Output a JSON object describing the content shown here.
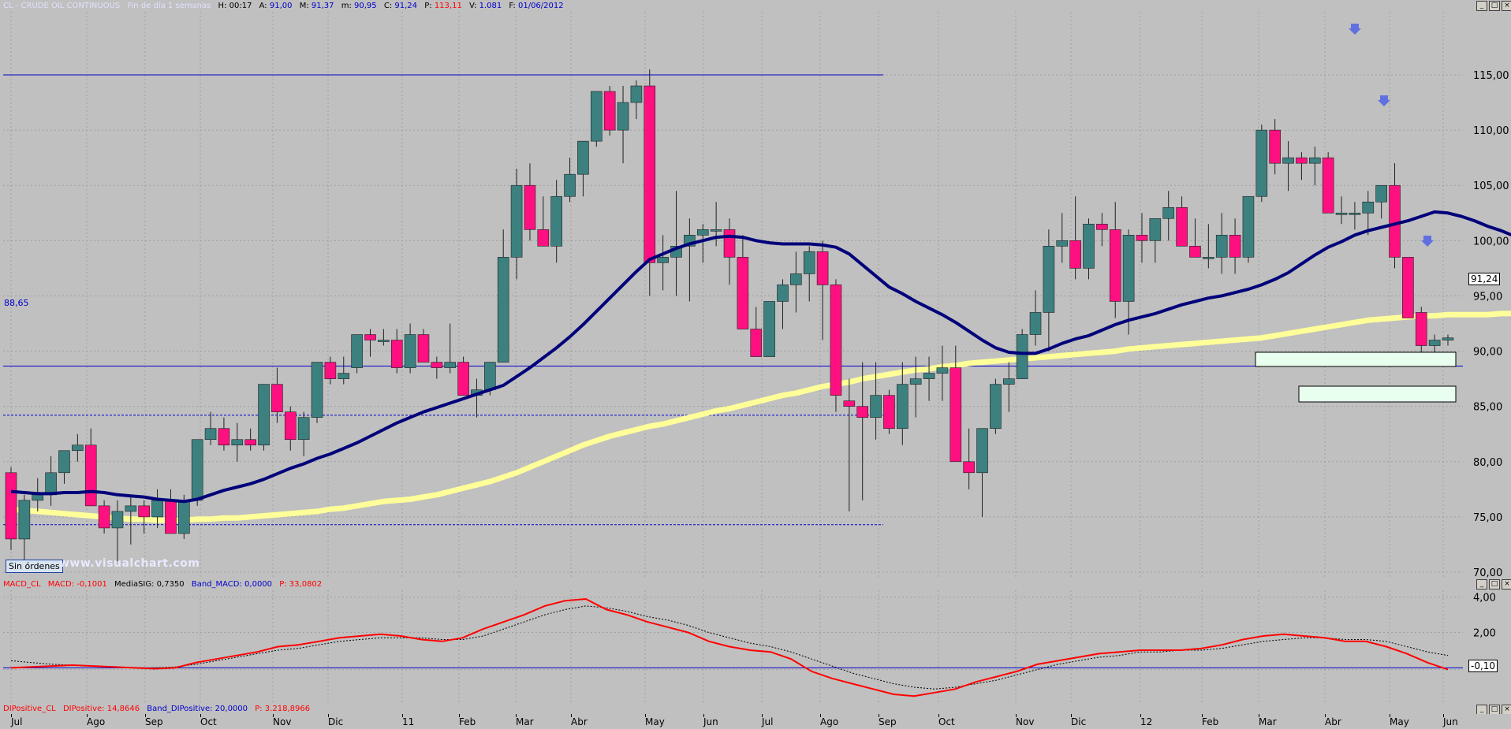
{
  "header": {
    "symbol": "CL - CRUDE OIL CONTINUOUS",
    "period": "Fin de día 1 semanas",
    "h_time": "H: 00:17",
    "a_label": "A:",
    "a_val": "91,00",
    "max_label": "M:",
    "max_val": "91,37",
    "min_label": "m:",
    "min_val": "90,95",
    "c_label": "C:",
    "c_val": "91,24",
    "p_label": "P:",
    "p_val": "113,11",
    "v_label": "V:",
    "v_val": "1.081",
    "f_label": "F:",
    "f_val": "01/06/2012"
  },
  "indicator_header": {
    "name": "MACD_CL",
    "macd": "MACD: -0,1001",
    "mediasig": "MediaSIG: 0,7350",
    "band": "Band_MACD: 0,0000",
    "p": "P: 33,0802"
  },
  "di_header": {
    "name": "DIPositive_CL",
    "di": "DIPositive: 14,8646",
    "band": "Band_DIPositive: 20,0000",
    "p": "P: 3.218,8966"
  },
  "buttons": {
    "sin_ordenes": "Sin órdenes"
  },
  "watermark": "www.visualchart.com",
  "price_badge": "91,24",
  "macd_badge": "-0,10",
  "hline_label": "88,65",
  "colors": {
    "bull": "#3d8080",
    "bear": "#ff1080",
    "ma_short": "#00007a",
    "ma_long": "#ffff99",
    "macd": "#ff0000",
    "signal": "#000000",
    "hline": "#0000cc"
  },
  "chart_data": [
    {
      "type": "candlestick",
      "title": "CL - CRUDE OIL CONTINUOUS",
      "yticks": [
        "115,00",
        "110,00",
        "105,00",
        "100,00",
        "95,00",
        "90,00",
        "85,00",
        "80,00",
        "75,00",
        "70,00"
      ],
      "ylim": [
        68,
        117
      ],
      "x_tick_labels": [
        "Jul",
        "Ago",
        "Sep",
        "Oct",
        "Nov",
        "Dic",
        "11",
        "Feb",
        "Mar",
        "Abr",
        "May",
        "Jun",
        "Jul",
        "Ago",
        "Sep",
        "Oct",
        "Nov",
        "Dic",
        "12",
        "Feb",
        "Mar",
        "Abr",
        "May",
        "Jun"
      ],
      "horizontal_lines": [
        115.0,
        88.65,
        84.2,
        74.3
      ],
      "candles_ohlc": [
        [
          79.0,
          79.5,
          72.0,
          73.0
        ],
        [
          73.0,
          77.0,
          71.0,
          76.5
        ],
        [
          76.5,
          78.5,
          75.5,
          77.0
        ],
        [
          77.0,
          80.5,
          76.0,
          79.0
        ],
        [
          79.0,
          81.0,
          78.0,
          81.0
        ],
        [
          81.0,
          82.5,
          80.0,
          81.5
        ],
        [
          81.5,
          83.0,
          76.0,
          76.0
        ],
        [
          76.0,
          76.5,
          73.5,
          74.0
        ],
        [
          74.0,
          76.5,
          71.0,
          75.5
        ],
        [
          75.5,
          77.0,
          72.5,
          76.0
        ],
        [
          76.0,
          76.5,
          73.5,
          75.0
        ],
        [
          75.0,
          77.5,
          74.0,
          76.5
        ],
        [
          76.5,
          77.5,
          73.5,
          73.5
        ],
        [
          73.5,
          77.0,
          73.0,
          76.5
        ],
        [
          76.5,
          82.0,
          76.0,
          82.0
        ],
        [
          82.0,
          84.5,
          81.5,
          83.0
        ],
        [
          83.0,
          84.0,
          81.0,
          81.5
        ],
        [
          81.5,
          83.5,
          80.0,
          82.0
        ],
        [
          82.0,
          83.0,
          81.0,
          81.5
        ],
        [
          81.5,
          87.0,
          81.0,
          87.0
        ],
        [
          87.0,
          88.5,
          83.5,
          84.5
        ],
        [
          84.5,
          85.0,
          81.0,
          82.0
        ],
        [
          82.0,
          84.5,
          80.5,
          84.0
        ],
        [
          84.0,
          89.0,
          83.5,
          89.0
        ],
        [
          89.0,
          89.5,
          87.0,
          87.5
        ],
        [
          87.5,
          89.5,
          87.0,
          88.0
        ],
        [
          88.5,
          91.5,
          88.0,
          91.5
        ],
        [
          91.5,
          92.0,
          89.5,
          91.0
        ],
        [
          91.0,
          92.0,
          90.5,
          91.0
        ],
        [
          91.0,
          92.0,
          88.0,
          88.5
        ],
        [
          88.5,
          92.5,
          88.0,
          91.5
        ],
        [
          91.5,
          92.0,
          90.0,
          89.0
        ],
        [
          89.0,
          89.5,
          87.5,
          88.5
        ],
        [
          88.5,
          92.5,
          88.0,
          89.0
        ],
        [
          89.0,
          89.5,
          86.0,
          86.0
        ],
        [
          86.0,
          87.5,
          84.0,
          86.5
        ],
        [
          86.5,
          89.0,
          86.0,
          89.0
        ],
        [
          89.0,
          101.0,
          89.0,
          98.5
        ],
        [
          98.5,
          106.5,
          96.5,
          105.0
        ],
        [
          105.0,
          107.0,
          100.0,
          101.0
        ],
        [
          101.0,
          104.0,
          99.5,
          99.5
        ],
        [
          99.5,
          105.5,
          98.0,
          104.0
        ],
        [
          104.0,
          107.5,
          103.5,
          106.0
        ],
        [
          106.0,
          109.0,
          104.0,
          109.0
        ],
        [
          109.0,
          113.5,
          108.5,
          113.5
        ],
        [
          113.5,
          114.0,
          109.5,
          110.0
        ],
        [
          110.0,
          114.0,
          107.0,
          112.5
        ],
        [
          112.5,
          114.5,
          111.0,
          114.0
        ],
        [
          114.0,
          115.5,
          95.0,
          98.0
        ],
        [
          98.0,
          100.5,
          95.5,
          98.5
        ],
        [
          98.5,
          104.5,
          95.0,
          99.5
        ],
        [
          99.5,
          102.0,
          94.5,
          100.5
        ],
        [
          100.5,
          101.5,
          98.0,
          101.0
        ],
        [
          101.0,
          103.5,
          99.5,
          101.0
        ],
        [
          101.0,
          102.0,
          96.0,
          98.5
        ],
        [
          98.5,
          100.5,
          92.0,
          92.0
        ],
        [
          92.0,
          94.0,
          90.0,
          89.5
        ],
        [
          89.5,
          94.5,
          89.5,
          94.5
        ],
        [
          94.5,
          96.5,
          92.0,
          96.0
        ],
        [
          96.0,
          99.0,
          93.5,
          97.0
        ],
        [
          97.0,
          99.5,
          94.5,
          99.0
        ],
        [
          99.0,
          100.0,
          91.0,
          96.0
        ],
        [
          96.0,
          96.5,
          84.5,
          86.0
        ],
        [
          85.5,
          87.5,
          75.5,
          85.0
        ],
        [
          85.0,
          89.0,
          76.5,
          84.0
        ],
        [
          84.0,
          89.0,
          82.0,
          86.0
        ],
        [
          86.0,
          86.5,
          82.5,
          83.0
        ],
        [
          83.0,
          89.0,
          81.5,
          87.0
        ],
        [
          87.0,
          89.5,
          84.0,
          87.5
        ],
        [
          87.5,
          89.5,
          85.5,
          88.0
        ],
        [
          88.0,
          90.5,
          85.5,
          88.5
        ],
        [
          88.5,
          90.5,
          81.5,
          80.0
        ],
        [
          80.0,
          83.0,
          77.5,
          79.0
        ],
        [
          79.0,
          81.5,
          75.0,
          83.0
        ],
        [
          83.0,
          87.5,
          82.5,
          87.0
        ],
        [
          87.0,
          89.0,
          84.5,
          87.5
        ],
        [
          87.5,
          92.0,
          87.5,
          91.5
        ],
        [
          91.5,
          95.5,
          90.5,
          93.5
        ],
        [
          93.5,
          101.0,
          90.0,
          99.5
        ],
        [
          99.5,
          102.5,
          98.0,
          100.0
        ],
        [
          100.0,
          104.0,
          96.5,
          97.5
        ],
        [
          97.5,
          102.0,
          96.5,
          101.5
        ],
        [
          101.5,
          102.5,
          99.5,
          101.0
        ],
        [
          101.0,
          103.5,
          93.0,
          94.5
        ],
        [
          94.5,
          101.0,
          91.5,
          100.5
        ],
        [
          100.5,
          102.5,
          98.0,
          100.0
        ],
        [
          100.0,
          101.0,
          98.0,
          102.0
        ],
        [
          102.0,
          104.5,
          100.0,
          103.0
        ],
        [
          103.0,
          104.0,
          100.0,
          99.5
        ],
        [
          99.5,
          102.0,
          98.5,
          98.5
        ],
        [
          98.5,
          101.5,
          97.5,
          98.5
        ],
        [
          98.5,
          102.5,
          97.0,
          100.5
        ],
        [
          100.5,
          102.0,
          97.0,
          98.5
        ],
        [
          98.5,
          103.5,
          98.0,
          104.0
        ],
        [
          104.0,
          110.5,
          103.5,
          110.0
        ],
        [
          110.0,
          111.0,
          106.0,
          107.0
        ],
        [
          107.0,
          109.0,
          104.5,
          107.5
        ],
        [
          107.5,
          108.0,
          105.5,
          107.0
        ],
        [
          107.0,
          108.5,
          105.0,
          107.5
        ],
        [
          107.5,
          108.0,
          102.5,
          102.5
        ],
        [
          102.5,
          104.0,
          101.5,
          102.5
        ],
        [
          102.5,
          103.5,
          101.0,
          102.5
        ],
        [
          102.5,
          104.5,
          100.5,
          103.5
        ],
        [
          103.5,
          105.0,
          102.0,
          105.0
        ],
        [
          105.0,
          107.0,
          97.5,
          98.5
        ],
        [
          98.5,
          98.5,
          95.0,
          93.0
        ],
        [
          93.5,
          94.0,
          89.5,
          90.5
        ],
        [
          90.5,
          91.5,
          89.0,
          91.0
        ],
        [
          91.0,
          91.5,
          90.5,
          91.2
        ]
      ],
      "ma_short": [
        77.3,
        77.2,
        77.1,
        77.1,
        77.2,
        77.2,
        77.3,
        77.2,
        77.0,
        76.9,
        76.8,
        76.6,
        76.5,
        76.4,
        76.6,
        77.0,
        77.4,
        77.7,
        78.0,
        78.4,
        78.9,
        79.4,
        79.8,
        80.3,
        80.7,
        81.2,
        81.7,
        82.3,
        82.9,
        83.5,
        84.0,
        84.5,
        84.9,
        85.3,
        85.7,
        86.1,
        86.5,
        86.9,
        87.7,
        88.5,
        89.4,
        90.3,
        91.3,
        92.4,
        93.6,
        94.8,
        96.0,
        97.2,
        98.3,
        98.8,
        99.3,
        99.7,
        100.0,
        100.3,
        100.4,
        100.3,
        100.0,
        99.8,
        99.7,
        99.7,
        99.7,
        99.6,
        99.4,
        98.8,
        97.8,
        96.8,
        95.8,
        95.2,
        94.5,
        93.9,
        93.3,
        92.6,
        91.8,
        91.0,
        90.3,
        89.9,
        89.8,
        89.8,
        90.2,
        90.7,
        91.1,
        91.4,
        91.9,
        92.4,
        92.8,
        93.1,
        93.4,
        93.8,
        94.2,
        94.5,
        94.8,
        95.0,
        95.3,
        95.6,
        96.0,
        96.5,
        97.1,
        97.9,
        98.7,
        99.4,
        99.9,
        100.5,
        100.9,
        101.2,
        101.5,
        101.8,
        102.2,
        102.6,
        102.5,
        102.2,
        101.8,
        101.3,
        100.9,
        100.4
      ],
      "ma_long": [
        75.7,
        75.6,
        75.5,
        75.4,
        75.3,
        75.2,
        75.1,
        75.0,
        74.9,
        74.8,
        74.8,
        74.7,
        74.7,
        74.7,
        74.8,
        74.8,
        74.9,
        74.9,
        75.0,
        75.1,
        75.2,
        75.3,
        75.4,
        75.5,
        75.7,
        75.8,
        76.0,
        76.2,
        76.4,
        76.5,
        76.6,
        76.8,
        77.0,
        77.3,
        77.6,
        77.9,
        78.2,
        78.6,
        79.0,
        79.5,
        80.0,
        80.5,
        81.0,
        81.5,
        81.9,
        82.3,
        82.6,
        82.9,
        83.2,
        83.4,
        83.7,
        84.0,
        84.3,
        84.6,
        84.8,
        85.1,
        85.4,
        85.7,
        86.0,
        86.2,
        86.5,
        86.8,
        87.0,
        87.2,
        87.5,
        87.7,
        87.9,
        88.1,
        88.3,
        88.4,
        88.6,
        88.7,
        88.9,
        89.0,
        89.1,
        89.2,
        89.3,
        89.4,
        89.5,
        89.6,
        89.7,
        89.8,
        89.9,
        90.0,
        90.2,
        90.3,
        90.4,
        90.5,
        90.6,
        90.7,
        90.8,
        90.9,
        91.0,
        91.1,
        91.2,
        91.4,
        91.6,
        91.8,
        92.0,
        92.2,
        92.4,
        92.6,
        92.8,
        92.9,
        93.0,
        93.1,
        93.2,
        93.2,
        93.3,
        93.3,
        93.3,
        93.3,
        93.4,
        93.4,
        93.5
      ]
    },
    {
      "type": "line",
      "title": "MACD_CL",
      "yticks": [
        "4,00",
        "2,00",
        "-0,10"
      ],
      "ylim": [
        -1.5,
        4.3
      ],
      "series": [
        {
          "name": "MACD",
          "values": [
            0.0,
            0.05,
            0.1,
            0.15,
            0.1,
            0.05,
            0.0,
            -0.05,
            0.0,
            0.3,
            0.5,
            0.7,
            0.9,
            1.2,
            1.3,
            1.5,
            1.7,
            1.8,
            1.9,
            1.8,
            1.6,
            1.5,
            1.7,
            2.2,
            2.6,
            3.0,
            3.5,
            3.8,
            3.9,
            3.3,
            3.0,
            2.6,
            2.3,
            2.0,
            1.5,
            1.2,
            1.0,
            0.9,
            0.5,
            -0.2,
            -0.6,
            -0.9,
            -1.2,
            -1.5,
            -1.6,
            -1.4,
            -1.2,
            -0.8,
            -0.5,
            -0.2,
            0.2,
            0.4,
            0.6,
            0.8,
            0.9,
            1.0,
            1.0,
            1.0,
            1.1,
            1.3,
            1.6,
            1.8,
            1.9,
            1.8,
            1.7,
            1.5,
            1.5,
            1.2,
            0.8,
            0.3,
            -0.1
          ]
        },
        {
          "name": "MediaSIG",
          "values": [
            0.4,
            0.3,
            0.2,
            0.15,
            0.1,
            0.05,
            0.0,
            0.0,
            0.05,
            0.2,
            0.4,
            0.6,
            0.8,
            1.0,
            1.1,
            1.3,
            1.5,
            1.6,
            1.7,
            1.7,
            1.7,
            1.6,
            1.6,
            1.8,
            2.2,
            2.6,
            3.0,
            3.3,
            3.5,
            3.4,
            3.2,
            2.9,
            2.7,
            2.4,
            2.0,
            1.7,
            1.4,
            1.2,
            0.9,
            0.5,
            0.1,
            -0.3,
            -0.6,
            -0.9,
            -1.1,
            -1.2,
            -1.1,
            -0.9,
            -0.7,
            -0.4,
            -0.1,
            0.2,
            0.4,
            0.6,
            0.7,
            0.9,
            0.9,
            1.0,
            1.0,
            1.1,
            1.3,
            1.5,
            1.6,
            1.7,
            1.7,
            1.6,
            1.6,
            1.5,
            1.2,
            0.9,
            0.7
          ]
        }
      ],
      "baseline": 0.0
    }
  ]
}
